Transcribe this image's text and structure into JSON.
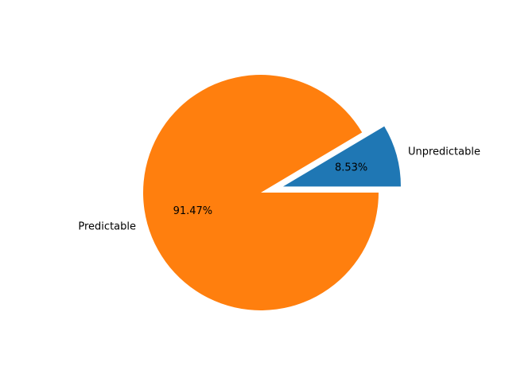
{
  "chart_data": {
    "type": "pie",
    "title": "",
    "slices": [
      {
        "label": "Unpredictable",
        "value": 8.53,
        "pct_label": "8.53%",
        "color": "#1f77b4",
        "exploded": true
      },
      {
        "label": "Predictable",
        "value": 91.47,
        "pct_label": "91.47%",
        "color": "#ff7f0e",
        "exploded": false
      }
    ],
    "start_angle_deg": 0,
    "direction": "counterclockwise",
    "legend": "none"
  }
}
